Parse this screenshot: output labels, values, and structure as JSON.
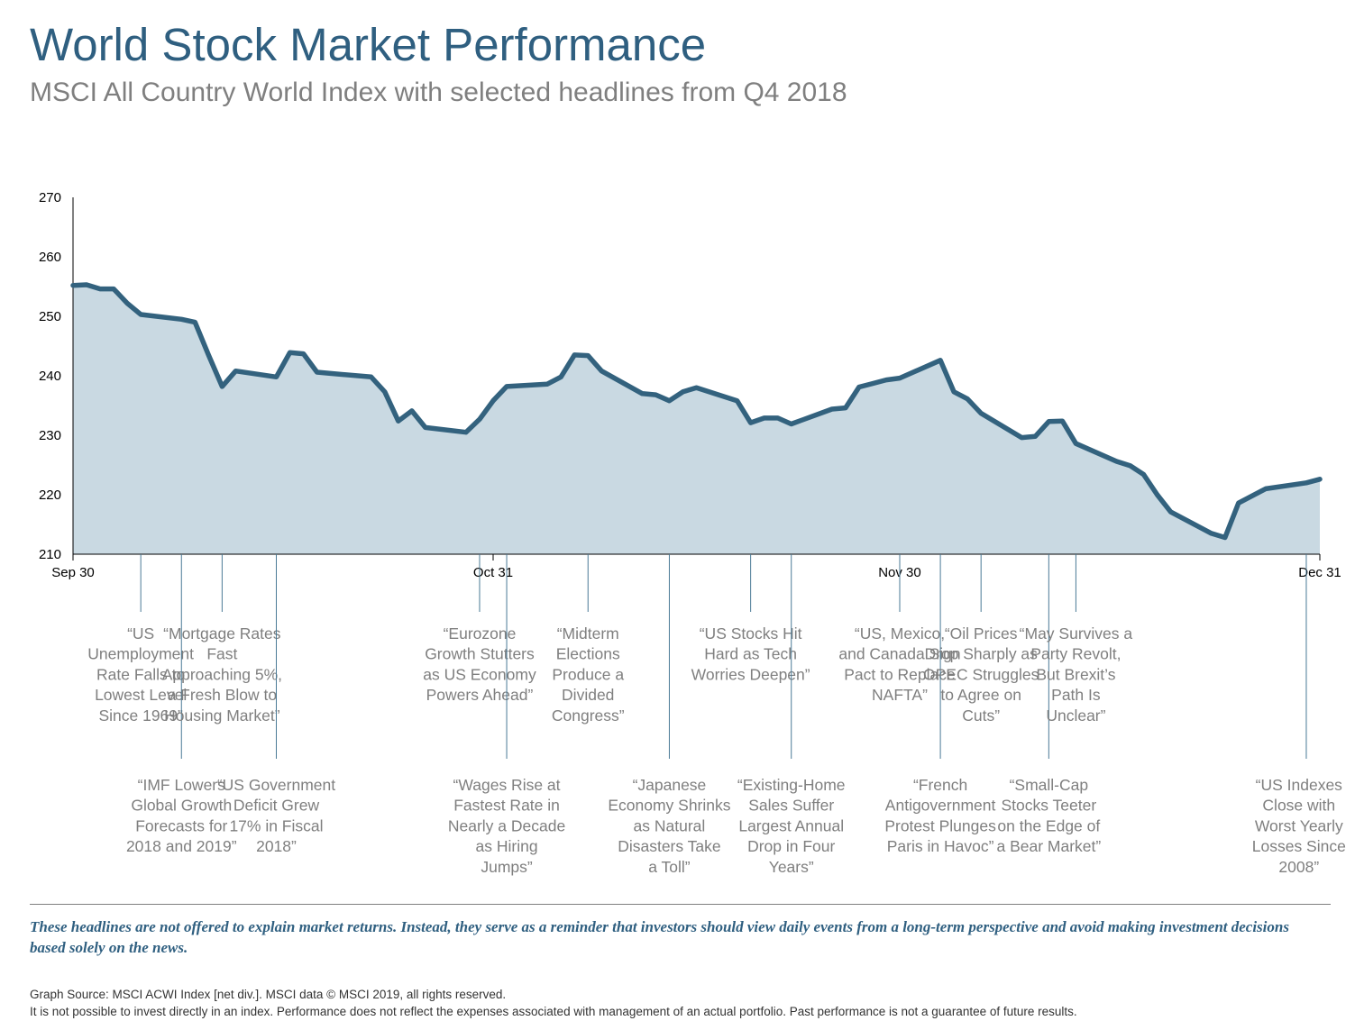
{
  "title": "World Stock Market Performance",
  "subtitle": "MSCI All Country World Index with selected headlines from Q4 2018",
  "disclaimer": "These headlines are not offered to explain market returns. Instead, they serve as a reminder that investors should view daily events from a long-term perspective and avoid making investment decisions based solely on the news.",
  "source_line_1": "Graph Source: MSCI ACWI Index [net div.]. MSCI data © MSCI 2019, all rights reserved.",
  "source_line_2": "It is not possible to invest directly in an index. Performance does not reflect the expenses associated with management of an actual portfolio. Past performance is not a guarantee of future results.",
  "colors": {
    "title": "#2f5f80",
    "line": "#33627e",
    "area": "#c9d9e2",
    "leader": "#4a7a96",
    "annotation_text": "#7f7f7f"
  },
  "chart_data": {
    "type": "area",
    "xlim": [
      0,
      92
    ],
    "ylim": [
      210,
      270
    ],
    "yticks": [
      210,
      220,
      230,
      240,
      250,
      260,
      270
    ],
    "xticks": [
      {
        "label": "Sep 30",
        "day": 0
      },
      {
        "label": "Oct 31",
        "day": 31
      },
      {
        "label": "Nov 30",
        "day": 61
      },
      {
        "label": "Dec 31",
        "day": 92
      }
    ],
    "series": [
      {
        "day": [
          0,
          1,
          2,
          3,
          4,
          5,
          8,
          9,
          10,
          11,
          12,
          15,
          16,
          17,
          18,
          19,
          22,
          23,
          24,
          25,
          26,
          29,
          30,
          31,
          32,
          35,
          36,
          37,
          38,
          39,
          42,
          43,
          44,
          45,
          46,
          49,
          50,
          51,
          52,
          53,
          56,
          57,
          58,
          59,
          60,
          61,
          64,
          65,
          66,
          67,
          70,
          71,
          72,
          73,
          74,
          77,
          78,
          79,
          80,
          81,
          84,
          85,
          86,
          87,
          88,
          91,
          92
        ],
        "value": [
          255.2,
          255.3,
          254.6,
          254.6,
          252.2,
          250.3,
          249.5,
          249.0,
          243.5,
          238.2,
          240.8,
          239.8,
          243.9,
          243.7,
          240.6,
          240.4,
          239.8,
          237.3,
          232.4,
          234.1,
          231.3,
          230.5,
          232.7,
          235.8,
          238.2,
          238.6,
          239.8,
          243.5,
          243.4,
          240.8,
          237.0,
          236.8,
          235.8,
          237.3,
          238.0,
          235.8,
          232.1,
          232.9,
          232.9,
          231.9,
          234.4,
          234.6,
          238.1,
          238.7,
          239.3,
          239.6,
          242.6,
          237.3,
          236.1,
          233.7,
          229.6,
          229.8,
          232.3,
          232.4,
          228.6,
          225.6,
          224.9,
          223.4,
          220.0,
          217.1,
          213.5,
          212.8,
          218.6,
          219.8,
          221.0,
          222.0,
          222.6
        ]
      }
    ],
    "annotations": [
      {
        "text": "“US Unemployment Rate Falls to Lowest Level Since 1969”",
        "day": 5,
        "row": "upper"
      },
      {
        "text": "“IMF Lowers Global Growth Forecasts for 2018 and 2019”",
        "day": 8,
        "row": "lower"
      },
      {
        "text": "“Mortgage Rates Fast Approaching 5%, a Fresh Blow to Housing Market”",
        "day": 11,
        "row": "upper"
      },
      {
        "text": "“US Government Deficit Grew 17% in Fiscal 2018”",
        "day": 15,
        "row": "lower"
      },
      {
        "text": "“Eurozone Growth Stutters as US Economy Powers Ahead”",
        "day": 30,
        "row": "upper"
      },
      {
        "text": "“Wages Rise at Fastest Rate in Nearly a Decade as Hiring Jumps”",
        "day": 32,
        "row": "lower"
      },
      {
        "text": "“Midterm Elections Produce a Divided Congress”",
        "day": 38,
        "row": "upper"
      },
      {
        "text": "“Japanese Economy Shrinks as Natural Disasters Take a Toll”",
        "day": 44,
        "row": "lower"
      },
      {
        "text": "“US Stocks Hit Hard as Tech Worries Deepen”",
        "day": 50,
        "row": "upper"
      },
      {
        "text": "“Existing-Home Sales Suffer Largest Annual Drop in Four Years”",
        "day": 53,
        "row": "lower"
      },
      {
        "text": "“US, Mexico, and Canada Sign Pact to Replace NAFTA”",
        "day": 61,
        "row": "upper"
      },
      {
        "text": "“French Antigovernment Protest Plunges Paris in Havoc”",
        "day": 64,
        "row": "lower"
      },
      {
        "text": "“Oil Prices Drop Sharply as OPEC Struggles to Agree on Cuts”",
        "day": 67,
        "row": "upper"
      },
      {
        "text": "“Small-Cap Stocks Teeter on the Edge of a Bear Market”",
        "day": 72,
        "row": "lower"
      },
      {
        "text": "“May Survives a Party Revolt, But Brexit’s Path Is Unclear”",
        "day": 74,
        "row": "upper"
      },
      {
        "text": "“US Indexes Close with Worst Yearly Losses Since 2008”",
        "day": 91,
        "row": "lower"
      }
    ]
  }
}
